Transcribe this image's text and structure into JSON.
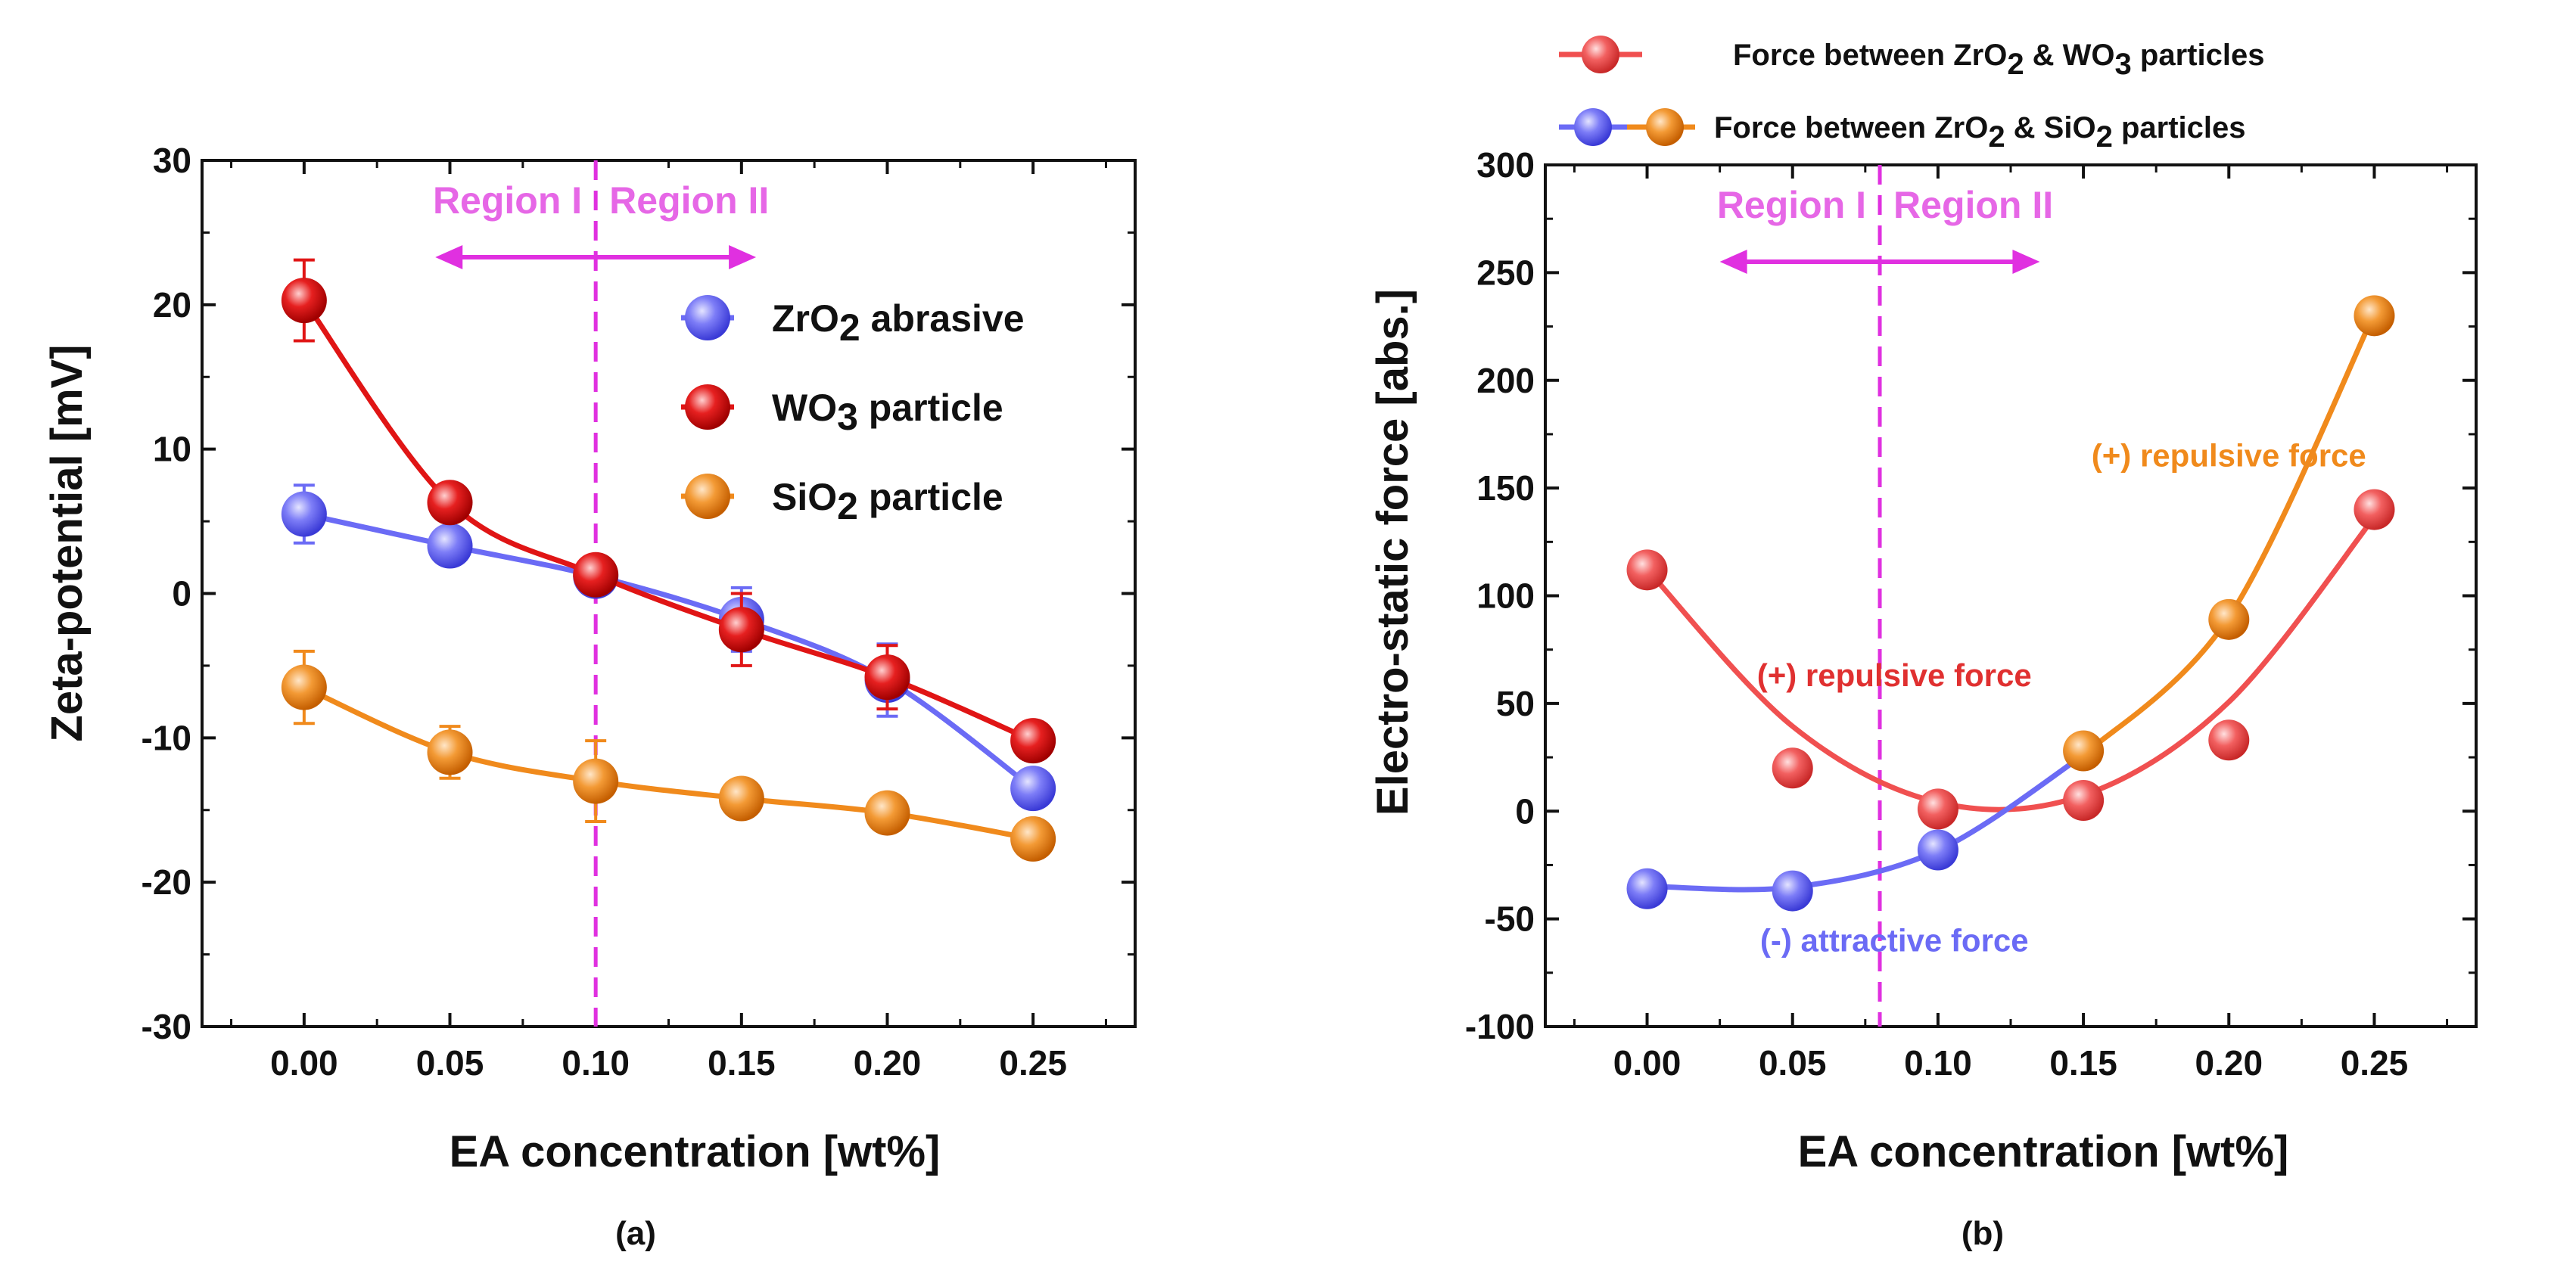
{
  "chart_data": [
    {
      "type": "line",
      "panel_label": "(a)",
      "xlabel": "EA concentration [wt%]",
      "ylabel": "Zeta-potential [mV]",
      "xlim": [
        -0.035,
        0.285
      ],
      "ylim": [
        -30,
        30
      ],
      "x": [
        0.0,
        0.05,
        0.1,
        0.15,
        0.2,
        0.25
      ],
      "x_tick_labels": [
        "0.00",
        "0.05",
        "0.10",
        "0.15",
        "0.20",
        "0.25"
      ],
      "y_ticks": [
        30,
        20,
        10,
        0,
        -10,
        -20,
        -30
      ],
      "y_tick_labels": [
        "30",
        "20",
        "10",
        "0",
        "-10",
        "-20",
        "-30"
      ],
      "series": [
        {
          "name": "ZrO2 abrasive",
          "legend_base": "ZrO",
          "legend_sub": "2",
          "legend_rest": " abrasive",
          "color": "#6b6bf5",
          "values": [
            5.5,
            3.3,
            1.2,
            -1.8,
            -6.0,
            -13.5
          ],
          "errors": [
            2.0,
            1.2,
            0.8,
            2.2,
            2.5,
            1.2
          ]
        },
        {
          "name": "WO3 particle",
          "legend_base": "WO",
          "legend_sub": "3",
          "legend_rest": " particle",
          "color": "#e01515",
          "values": [
            20.3,
            6.3,
            1.3,
            -2.5,
            -5.8,
            -10.2
          ],
          "errors": [
            2.8,
            1.2,
            0.8,
            2.5,
            2.2,
            1.3
          ]
        },
        {
          "name": "SiO2 particle",
          "legend_base": "SiO",
          "legend_sub": "2",
          "legend_rest": " particle",
          "color": "#f08a1c",
          "values": [
            -6.5,
            -11.0,
            -13.0,
            -14.2,
            -15.2,
            -17.0
          ],
          "errors": [
            2.5,
            1.8,
            2.8,
            1.2,
            1.2,
            1.3
          ]
        }
      ],
      "divider_x": 0.1,
      "region_left": "Region I",
      "region_right": "Region II",
      "arrow_range": [
        0.045,
        0.155
      ],
      "legend_position": "top-right"
    },
    {
      "type": "scatter",
      "panel_label": "(b)",
      "xlabel": "EA concentration [wt%]",
      "ylabel": "Electro-static force [abs.]",
      "xlim": [
        -0.035,
        0.285
      ],
      "ylim": [
        -100,
        300
      ],
      "x": [
        0.0,
        0.05,
        0.1,
        0.15,
        0.2,
        0.25
      ],
      "x_tick_labels": [
        "0.00",
        "0.05",
        "0.10",
        "0.15",
        "0.20",
        "0.25"
      ],
      "y_ticks": [
        300,
        250,
        200,
        150,
        100,
        50,
        0,
        -50,
        -100
      ],
      "y_tick_labels": [
        "300",
        "250",
        "200",
        "150",
        "100",
        "50",
        "0",
        "-50",
        "-100"
      ],
      "series": [
        {
          "name": "Force between ZrO2 & WO3 particles",
          "color": "#f05050",
          "values": [
            112,
            20,
            1,
            5,
            33,
            140
          ],
          "fit": [
            112.2,
            39.4,
            4.1,
            7.4,
            50.7,
            136.5
          ]
        },
        {
          "name": "Force between ZrO2 & SiO2 particles (negative)",
          "color": "#6b6bf5",
          "values": [
            -36,
            -37,
            -18
          ],
          "fit": [
            -34.8,
            -35.3,
            -18.2
          ]
        },
        {
          "name": "Force between ZrO2 & SiO2 particles (positive)",
          "color": "#f08a1c",
          "values": [
            28,
            89,
            230
          ],
          "fit": [
            26,
            90,
            231
          ]
        }
      ],
      "divider_x": 0.08,
      "region_left": "Region I",
      "region_right": "Region II",
      "arrow_range": [
        0.025,
        0.135
      ],
      "annotations": [
        {
          "text": "(+) repulsive force",
          "color": "#f08a1c",
          "x": 0.2,
          "y": 160
        },
        {
          "text": "(+) repulsive force",
          "color": "#e03030",
          "x": 0.085,
          "y": 58
        },
        {
          "text": "(-) attractive force",
          "color": "#6b6bf5",
          "x": 0.085,
          "y": -65
        }
      ],
      "legend": [
        {
          "label_parts": [
            "Force between ZrO",
            "2",
            " & WO",
            "3",
            " particles"
          ],
          "markers": [
            "#f05050"
          ]
        },
        {
          "label_parts": [
            "Force between ZrO",
            "2",
            " & SiO",
            "2",
            " particles"
          ],
          "markers": [
            "#6b6bf5",
            "#f08a1c"
          ]
        }
      ],
      "legend_position": "top"
    }
  ]
}
